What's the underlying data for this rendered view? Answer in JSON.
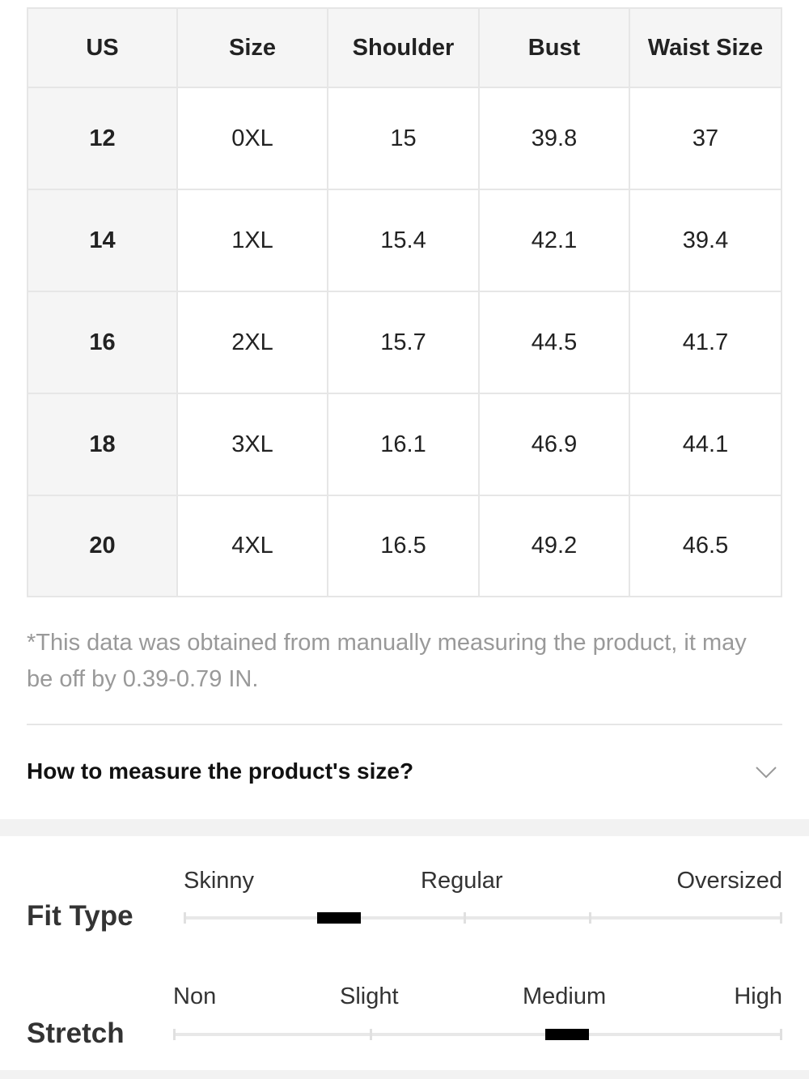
{
  "table": {
    "headers": [
      "US",
      "Size",
      "Shoulder",
      "Bust",
      "Waist Size"
    ],
    "rows": [
      [
        "12",
        "0XL",
        "15",
        "39.8",
        "37"
      ],
      [
        "14",
        "1XL",
        "15.4",
        "42.1",
        "39.4"
      ],
      [
        "16",
        "2XL",
        "15.7",
        "44.5",
        "41.7"
      ],
      [
        "18",
        "3XL",
        "16.1",
        "46.9",
        "44.1"
      ],
      [
        "20",
        "4XL",
        "16.5",
        "49.2",
        "46.5"
      ]
    ]
  },
  "note": "*This data was obtained from manually measuring the product, it may be off by 0.39-0.79 IN.",
  "accordion": {
    "title": "How to measure the product's size?"
  },
  "fit_type": {
    "label": "Fit Type",
    "options": [
      "Skinny",
      "Regular",
      "Oversized"
    ]
  },
  "stretch": {
    "label": "Stretch",
    "options": [
      "Non",
      "Slight",
      "Medium",
      "High"
    ]
  }
}
